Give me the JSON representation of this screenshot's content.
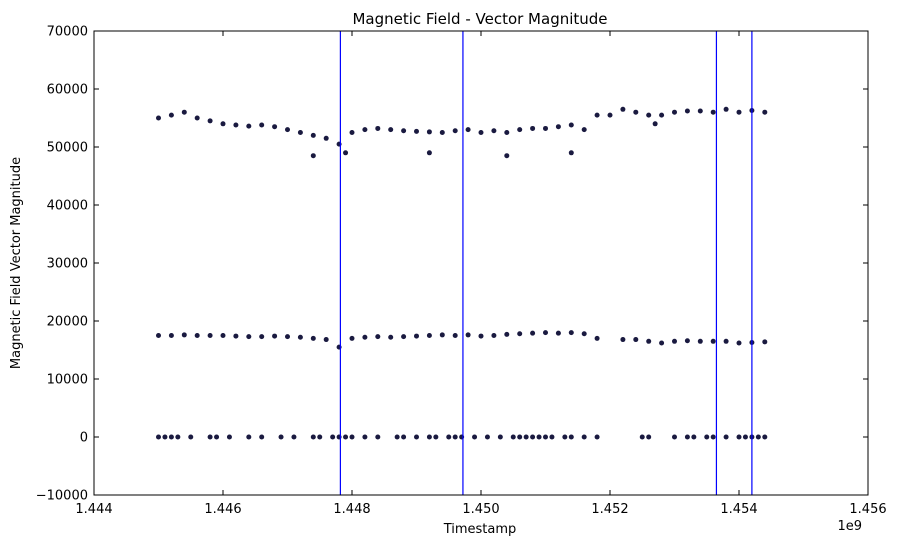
{
  "chart_data": {
    "type": "scatter",
    "title": "Magnetic Field - Vector Magnitude",
    "xlabel": "Timestamp",
    "ylabel": "Magnetic Field Vector Magnitude",
    "x_offset_label": "1e9",
    "xlim": [
      1.444,
      1.456
    ],
    "ylim": [
      -10000,
      70000
    ],
    "x_ticks": [
      1.444,
      1.446,
      1.448,
      1.45,
      1.452,
      1.454,
      1.456
    ],
    "x_tick_labels": [
      "1.444",
      "1.446",
      "1.448",
      "1.450",
      "1.452",
      "1.454",
      "1.456"
    ],
    "y_ticks": [
      -10000,
      0,
      10000,
      20000,
      30000,
      40000,
      50000,
      60000,
      70000
    ],
    "y_tick_labels": [
      "−10000",
      "0",
      "10000",
      "20000",
      "30000",
      "40000",
      "50000",
      "60000",
      "70000"
    ],
    "grid": false,
    "colors": {
      "points": "#1a1a40",
      "vlines": "#0000ff",
      "axes": "#000000"
    },
    "vertical_lines": [
      1.44782,
      1.44972,
      1.45365,
      1.4542
    ],
    "series": [
      {
        "x": [
          1.445,
          1.4452,
          1.4454,
          1.4456,
          1.4458,
          1.446,
          1.4462,
          1.4464,
          1.4466,
          1.4468,
          1.447,
          1.4472,
          1.4474,
          1.4476,
          1.4478,
          1.448,
          1.4482,
          1.4484,
          1.4486,
          1.4488,
          1.449,
          1.4492,
          1.4494,
          1.4496,
          1.4498,
          1.45,
          1.4502,
          1.4504,
          1.4506,
          1.4508,
          1.451,
          1.4512,
          1.4514,
          1.4516,
          1.4518,
          1.4522,
          1.4524,
          1.4526,
          1.4528,
          1.453,
          1.4532,
          1.4534,
          1.4536,
          1.4538,
          1.454,
          1.4542,
          1.4544
        ],
        "y": [
          55000,
          55500,
          56000,
          55000,
          54500,
          54000,
          53800,
          53600,
          53800,
          53500,
          53000,
          52500,
          52000,
          51500,
          50500,
          52500,
          53000,
          53200,
          53000,
          52800,
          52700,
          52600,
          52500,
          52800,
          53000,
          52500,
          52800,
          52500,
          53000,
          53200,
          53200,
          53500,
          53800,
          53000,
          55500,
          56500,
          56000,
          55500,
          55500,
          56000,
          56200,
          56200,
          56000,
          56500,
          56000,
          56300,
          56000
        ]
      },
      {
        "x": [
          1.4474,
          1.4479,
          1.4492,
          1.4504,
          1.4514,
          1.452,
          1.4527
        ],
        "y": [
          48500,
          49000,
          49000,
          48500,
          49000,
          55500,
          54000
        ]
      },
      {
        "x": [
          1.445,
          1.4452,
          1.4454,
          1.4456,
          1.4458,
          1.446,
          1.4462,
          1.4464,
          1.4466,
          1.4468,
          1.447,
          1.4472,
          1.4474,
          1.4476,
          1.4478,
          1.448,
          1.4482,
          1.4484,
          1.4486,
          1.4488,
          1.449,
          1.4492,
          1.4494,
          1.4496,
          1.4498,
          1.45,
          1.4502,
          1.4504,
          1.4506,
          1.4508,
          1.451,
          1.4512,
          1.4514,
          1.4516,
          1.4518,
          1.4522,
          1.4524,
          1.4526,
          1.4528,
          1.453,
          1.4532,
          1.4534,
          1.4536,
          1.4538,
          1.454,
          1.4542,
          1.4544
        ],
        "y": [
          17500,
          17500,
          17600,
          17500,
          17500,
          17500,
          17400,
          17300,
          17300,
          17400,
          17300,
          17200,
          17000,
          16800,
          15500,
          17000,
          17200,
          17300,
          17200,
          17300,
          17400,
          17500,
          17600,
          17500,
          17600,
          17400,
          17500,
          17700,
          17800,
          17900,
          18000,
          17900,
          18000,
          17800,
          17000,
          16800,
          16800,
          16500,
          16200,
          16500,
          16600,
          16500,
          16500,
          16500,
          16200,
          16300,
          16400
        ]
      },
      {
        "x": [
          1.445,
          1.4451,
          1.4452,
          1.4453,
          1.4455,
          1.4458,
          1.4459,
          1.4461,
          1.4464,
          1.4466,
          1.4469,
          1.4471,
          1.4474,
          1.4475,
          1.4477,
          1.4478,
          1.4479,
          1.448,
          1.4482,
          1.4484,
          1.4487,
          1.4488,
          1.449,
          1.4492,
          1.4493,
          1.4495,
          1.4496,
          1.4497,
          1.4499,
          1.4501,
          1.4503,
          1.4505,
          1.4506,
          1.4507,
          1.4508,
          1.4509,
          1.451,
          1.4511,
          1.4513,
          1.4514,
          1.4516,
          1.4518,
          1.4525,
          1.4526,
          1.453,
          1.4532,
          1.4533,
          1.4535,
          1.4536,
          1.4538,
          1.454,
          1.4541,
          1.4542,
          1.4543,
          1.4544
        ],
        "y": [
          0,
          0,
          0,
          0,
          0,
          0,
          0,
          0,
          0,
          0,
          0,
          0,
          0,
          0,
          0,
          0,
          0,
          0,
          0,
          0,
          0,
          0,
          0,
          0,
          0,
          0,
          0,
          0,
          0,
          0,
          0,
          0,
          0,
          0,
          0,
          0,
          0,
          0,
          0,
          0,
          0,
          0,
          0,
          0,
          0,
          0,
          0,
          0,
          0,
          0,
          0,
          0,
          0,
          0,
          0
        ]
      }
    ]
  }
}
